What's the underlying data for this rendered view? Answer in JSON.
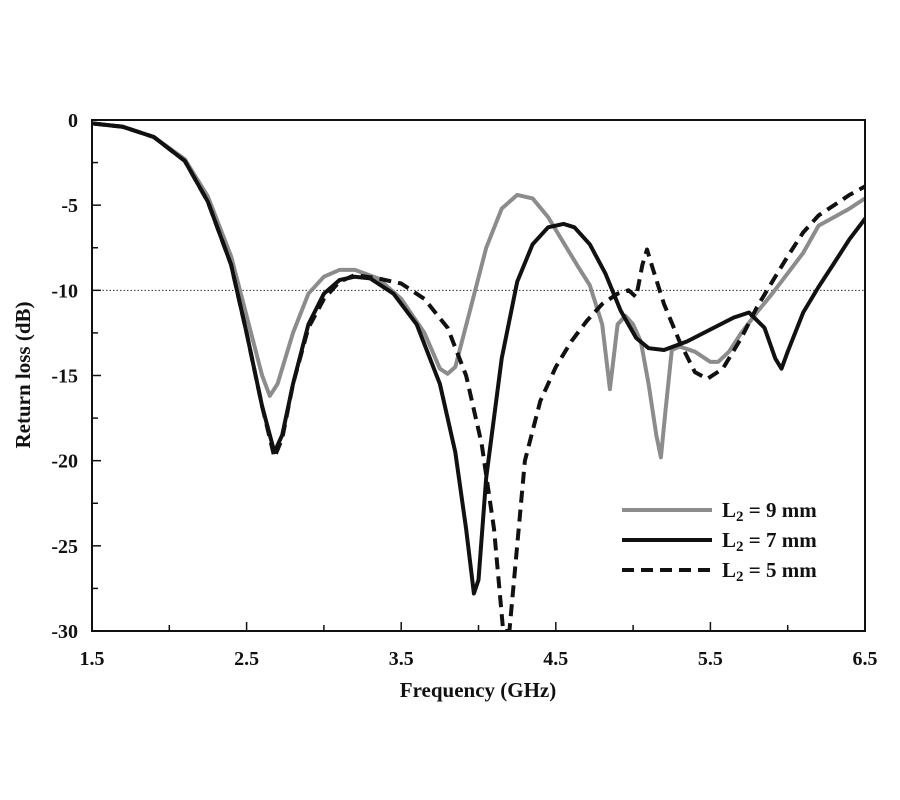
{
  "chart_data": {
    "type": "line",
    "title": "",
    "xlabel": "Frequency (GHz)",
    "ylabel": "Return loss (dB)",
    "xlim": [
      1.5,
      6.5
    ],
    "ylim": [
      -30,
      0
    ],
    "xticks": [
      1.5,
      2.5,
      3.5,
      4.5,
      5.5,
      6.5
    ],
    "xtick_labels": [
      "1.5",
      "2.5",
      "3.5",
      "4.5",
      "5.5",
      "6.5"
    ],
    "yticks": [
      0,
      -5,
      -10,
      -15,
      -20,
      -25,
      -30
    ],
    "ytick_labels": [
      "0",
      "-5",
      "-10",
      "-15",
      "-20",
      "-25",
      "-30"
    ],
    "reference_line": {
      "y": -10,
      "style": "dotted"
    },
    "legend_position": "lower-right",
    "series": [
      {
        "name_main": "L",
        "name_sub": "2",
        "name_rest": " = 9 mm",
        "color": "#8c8c8c",
        "dash": "solid",
        "points": [
          [
            1.5,
            -0.2
          ],
          [
            1.7,
            -0.4
          ],
          [
            1.9,
            -1.0
          ],
          [
            2.1,
            -2.3
          ],
          [
            2.25,
            -4.5
          ],
          [
            2.4,
            -8.0
          ],
          [
            2.5,
            -11.5
          ],
          [
            2.6,
            -15.0
          ],
          [
            2.65,
            -16.2
          ],
          [
            2.7,
            -15.5
          ],
          [
            2.8,
            -12.5
          ],
          [
            2.9,
            -10.2
          ],
          [
            3.0,
            -9.2
          ],
          [
            3.1,
            -8.8
          ],
          [
            3.2,
            -8.8
          ],
          [
            3.35,
            -9.3
          ],
          [
            3.5,
            -10.5
          ],
          [
            3.65,
            -12.5
          ],
          [
            3.75,
            -14.6
          ],
          [
            3.8,
            -14.9
          ],
          [
            3.85,
            -14.5
          ],
          [
            3.95,
            -11.0
          ],
          [
            4.05,
            -7.5
          ],
          [
            4.15,
            -5.2
          ],
          [
            4.25,
            -4.4
          ],
          [
            4.35,
            -4.6
          ],
          [
            4.45,
            -5.7
          ],
          [
            4.55,
            -7.2
          ],
          [
            4.65,
            -8.7
          ],
          [
            4.72,
            -9.7
          ],
          [
            4.8,
            -12.0
          ],
          [
            4.85,
            -15.8
          ],
          [
            4.9,
            -12.0
          ],
          [
            4.95,
            -11.5
          ],
          [
            5.0,
            -12.0
          ],
          [
            5.05,
            -13.0
          ],
          [
            5.1,
            -15.5
          ],
          [
            5.15,
            -18.5
          ],
          [
            5.18,
            -19.8
          ],
          [
            5.21,
            -17.0
          ],
          [
            5.25,
            -13.5
          ],
          [
            5.3,
            -13.3
          ],
          [
            5.4,
            -13.6
          ],
          [
            5.5,
            -14.2
          ],
          [
            5.55,
            -14.2
          ],
          [
            5.62,
            -13.6
          ],
          [
            5.7,
            -12.5
          ],
          [
            5.8,
            -11.3
          ],
          [
            5.9,
            -10.2
          ],
          [
            6.0,
            -9.0
          ],
          [
            6.1,
            -7.8
          ],
          [
            6.2,
            -6.2
          ],
          [
            6.3,
            -5.7
          ],
          [
            6.4,
            -5.2
          ],
          [
            6.5,
            -4.6
          ]
        ]
      },
      {
        "name_main": "L",
        "name_sub": "2",
        "name_rest": " = 7 mm",
        "color": "#111111",
        "dash": "solid",
        "points": [
          [
            1.5,
            -0.2
          ],
          [
            1.7,
            -0.4
          ],
          [
            1.9,
            -1.0
          ],
          [
            2.1,
            -2.4
          ],
          [
            2.25,
            -4.8
          ],
          [
            2.4,
            -8.5
          ],
          [
            2.5,
            -12.5
          ],
          [
            2.6,
            -16.8
          ],
          [
            2.68,
            -19.5
          ],
          [
            2.73,
            -18.5
          ],
          [
            2.8,
            -15.5
          ],
          [
            2.9,
            -12.0
          ],
          [
            3.0,
            -10.2
          ],
          [
            3.1,
            -9.4
          ],
          [
            3.2,
            -9.2
          ],
          [
            3.3,
            -9.3
          ],
          [
            3.45,
            -10.2
          ],
          [
            3.6,
            -12.0
          ],
          [
            3.75,
            -15.5
          ],
          [
            3.85,
            -19.5
          ],
          [
            3.92,
            -24.0
          ],
          [
            3.97,
            -27.8
          ],
          [
            4.0,
            -27.0
          ],
          [
            4.05,
            -21.0
          ],
          [
            4.15,
            -14.0
          ],
          [
            4.25,
            -9.5
          ],
          [
            4.35,
            -7.3
          ],
          [
            4.45,
            -6.3
          ],
          [
            4.55,
            -6.1
          ],
          [
            4.62,
            -6.3
          ],
          [
            4.72,
            -7.3
          ],
          [
            4.82,
            -9.0
          ],
          [
            4.92,
            -11.2
          ],
          [
            5.02,
            -12.8
          ],
          [
            5.1,
            -13.4
          ],
          [
            5.2,
            -13.5
          ],
          [
            5.35,
            -13.0
          ],
          [
            5.5,
            -12.3
          ],
          [
            5.65,
            -11.6
          ],
          [
            5.75,
            -11.3
          ],
          [
            5.85,
            -12.2
          ],
          [
            5.92,
            -14.0
          ],
          [
            5.96,
            -14.6
          ],
          [
            6.0,
            -13.6
          ],
          [
            6.1,
            -11.3
          ],
          [
            6.2,
            -9.8
          ],
          [
            6.3,
            -8.4
          ],
          [
            6.4,
            -7.0
          ],
          [
            6.5,
            -5.8
          ]
        ]
      },
      {
        "name_main": "L",
        "name_sub": "2",
        "name_rest": " = 5 mm",
        "color": "#111111",
        "dash": "dashed",
        "points": [
          [
            1.5,
            -0.2
          ],
          [
            1.7,
            -0.4
          ],
          [
            1.9,
            -1.0
          ],
          [
            2.1,
            -2.4
          ],
          [
            2.25,
            -4.8
          ],
          [
            2.4,
            -8.5
          ],
          [
            2.5,
            -12.5
          ],
          [
            2.6,
            -16.8
          ],
          [
            2.68,
            -19.8
          ],
          [
            2.73,
            -18.7
          ],
          [
            2.8,
            -15.5
          ],
          [
            2.9,
            -12.2
          ],
          [
            3.0,
            -10.5
          ],
          [
            3.1,
            -9.5
          ],
          [
            3.2,
            -9.1
          ],
          [
            3.35,
            -9.3
          ],
          [
            3.5,
            -9.6
          ],
          [
            3.65,
            -10.5
          ],
          [
            3.8,
            -12.2
          ],
          [
            3.92,
            -15.0
          ],
          [
            4.02,
            -19.0
          ],
          [
            4.1,
            -24.0
          ],
          [
            4.16,
            -30.0
          ],
          [
            4.2,
            -30.0
          ],
          [
            4.24,
            -26.0
          ],
          [
            4.3,
            -20.0
          ],
          [
            4.4,
            -16.5
          ],
          [
            4.5,
            -14.5
          ],
          [
            4.6,
            -13.0
          ],
          [
            4.7,
            -11.8
          ],
          [
            4.8,
            -10.8
          ],
          [
            4.9,
            -10.2
          ],
          [
            4.97,
            -10.0
          ],
          [
            5.02,
            -10.4
          ],
          [
            5.06,
            -8.5
          ],
          [
            5.09,
            -7.6
          ],
          [
            5.13,
            -8.8
          ],
          [
            5.2,
            -10.8
          ],
          [
            5.3,
            -13.0
          ],
          [
            5.4,
            -14.8
          ],
          [
            5.48,
            -15.2
          ],
          [
            5.58,
            -14.6
          ],
          [
            5.7,
            -12.8
          ],
          [
            5.8,
            -11.0
          ],
          [
            5.9,
            -9.5
          ],
          [
            6.0,
            -8.0
          ],
          [
            6.1,
            -6.6
          ],
          [
            6.2,
            -5.6
          ],
          [
            6.3,
            -5.0
          ],
          [
            6.4,
            -4.4
          ],
          [
            6.5,
            -3.9
          ]
        ]
      }
    ]
  }
}
